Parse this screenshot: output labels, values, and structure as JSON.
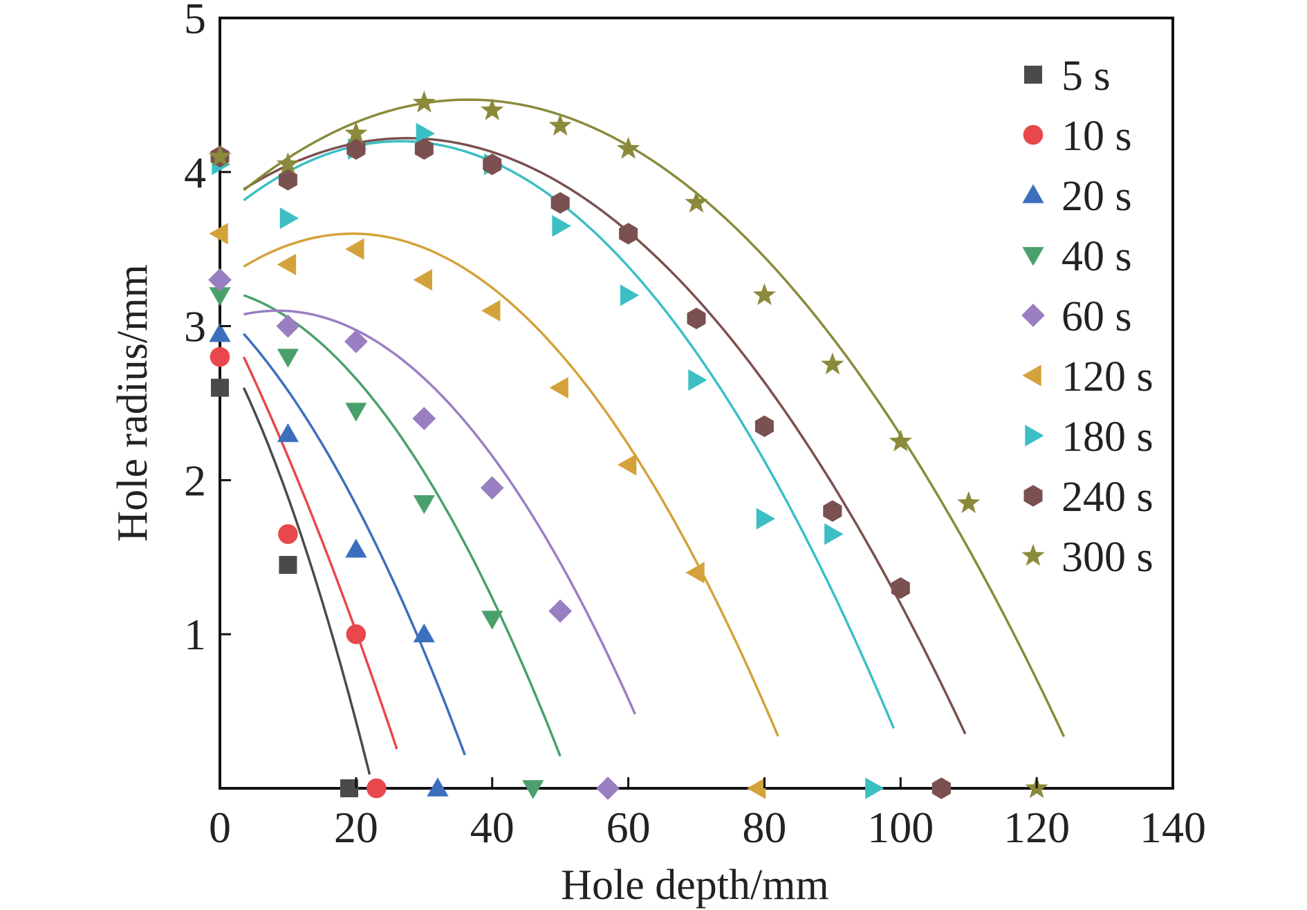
{
  "chart_data": {
    "type": "scatter",
    "title": "",
    "xlabel": "Hole depth/mm",
    "ylabel": "Hole radius/mm",
    "xlim": [
      0,
      140
    ],
    "ylim": [
      0,
      5
    ],
    "xticks": [
      0,
      20,
      40,
      60,
      80,
      100,
      120,
      140
    ],
    "yticks": [
      1,
      2,
      3,
      4,
      5
    ],
    "legend_position": "top-right",
    "grid": false,
    "series": [
      {
        "name": "5 s",
        "marker": "square",
        "color": "#4a4a4a",
        "points": [
          [
            0,
            2.6
          ],
          [
            10,
            1.45
          ],
          [
            19,
            0
          ]
        ],
        "fit": {
          "a": 0.0,
          "b": -0.095,
          "c": -0.0022,
          "x0": 0,
          "x1": 18.5
        }
      },
      {
        "name": "10 s",
        "marker": "circle",
        "color": "#e8474c",
        "points": [
          [
            0,
            2.8
          ],
          [
            10,
            1.65
          ],
          [
            20,
            1.0
          ],
          [
            23,
            0
          ]
        ],
        "fit": {
          "a": 0.0,
          "b": -0.094,
          "c": -0.00085,
          "x0": 0,
          "x1": 22.5
        }
      },
      {
        "name": "20 s",
        "marker": "triangle-up",
        "color": "#3b6fbd",
        "points": [
          [
            0,
            2.95
          ],
          [
            10,
            2.3
          ],
          [
            20,
            1.55
          ],
          [
            30,
            1.0
          ],
          [
            32,
            0
          ]
        ],
        "fit": {
          "a": 0.0,
          "b": -0.05,
          "c": -0.00105,
          "x0": 0,
          "x1": 32.5
        }
      },
      {
        "name": "40 s",
        "marker": "triangle-down",
        "color": "#4aa06b",
        "points": [
          [
            0,
            3.2
          ],
          [
            10,
            2.8
          ],
          [
            20,
            2.45
          ],
          [
            30,
            1.85
          ],
          [
            40,
            1.1
          ],
          [
            46,
            0
          ]
        ],
        "fit": {
          "a": 0.0,
          "b": -0.0155,
          "c": -0.00105,
          "x0": 0,
          "x1": 46.5
        }
      },
      {
        "name": "60 s",
        "marker": "diamond",
        "color": "#9a7ec2",
        "points": [
          [
            0,
            3.3
          ],
          [
            10,
            3.0
          ],
          [
            20,
            2.9
          ],
          [
            30,
            2.4
          ],
          [
            40,
            1.95
          ],
          [
            50,
            1.15
          ],
          [
            57,
            0
          ]
        ],
        "fit": {
          "a": 3.1,
          "b": 0.0,
          "c": -0.00095,
          "x0": 0,
          "x1": 57.5,
          "x0v": 5
        }
      },
      {
        "name": "120 s",
        "marker": "triangle-left",
        "color": "#d4a23a",
        "points": [
          [
            0,
            3.6
          ],
          [
            10,
            3.4
          ],
          [
            20,
            3.5
          ],
          [
            30,
            3.3
          ],
          [
            40,
            3.1
          ],
          [
            50,
            2.6
          ],
          [
            60,
            2.1
          ],
          [
            70,
            1.4
          ],
          [
            79,
            0
          ]
        ],
        "fit": {
          "a": 3.6,
          "b": 0.0,
          "c": -0.000835,
          "x0": 0,
          "x1": 78.5,
          "x0v": 16
        }
      },
      {
        "name": "180 s",
        "marker": "triangle-right",
        "color": "#3bbfc4",
        "points": [
          [
            0,
            4.05
          ],
          [
            10,
            3.7
          ],
          [
            20,
            4.15
          ],
          [
            30,
            4.25
          ],
          [
            40,
            4.05
          ],
          [
            50,
            3.65
          ],
          [
            60,
            3.2
          ],
          [
            70,
            2.65
          ],
          [
            80,
            1.75
          ],
          [
            90,
            1.65
          ],
          [
            96,
            0
          ]
        ],
        "fit": {
          "a": 4.2,
          "b": 0.0,
          "c": -0.000725,
          "x0": 0,
          "x1": 95.5,
          "x0v": 23
        }
      },
      {
        "name": "240 s",
        "marker": "hexagon",
        "color": "#7b5050",
        "points": [
          [
            0,
            4.1
          ],
          [
            10,
            3.95
          ],
          [
            20,
            4.15
          ],
          [
            30,
            4.15
          ],
          [
            40,
            4.05
          ],
          [
            50,
            3.8
          ],
          [
            60,
            3.6
          ],
          [
            70,
            3.05
          ],
          [
            80,
            2.35
          ],
          [
            90,
            1.8
          ],
          [
            100,
            1.3
          ],
          [
            106,
            0
          ]
        ],
        "fit": {
          "a": 4.22,
          "b": 0.0,
          "c": -0.000575,
          "x0": 0,
          "x1": 106,
          "x0v": 24
        }
      },
      {
        "name": "300 s",
        "marker": "star",
        "color": "#8a8a3a",
        "points": [
          [
            0,
            4.1
          ],
          [
            10,
            4.05
          ],
          [
            20,
            4.25
          ],
          [
            30,
            4.45
          ],
          [
            40,
            4.4
          ],
          [
            50,
            4.3
          ],
          [
            60,
            4.15
          ],
          [
            70,
            3.8
          ],
          [
            80,
            3.2
          ],
          [
            90,
            2.75
          ],
          [
            100,
            2.25
          ],
          [
            110,
            1.85
          ],
          [
            120,
            0
          ]
        ],
        "fit": {
          "a": 4.47,
          "b": 0.0,
          "c": -0.00054,
          "x0": 0,
          "x1": 120.5,
          "x0v": 33
        }
      }
    ]
  }
}
